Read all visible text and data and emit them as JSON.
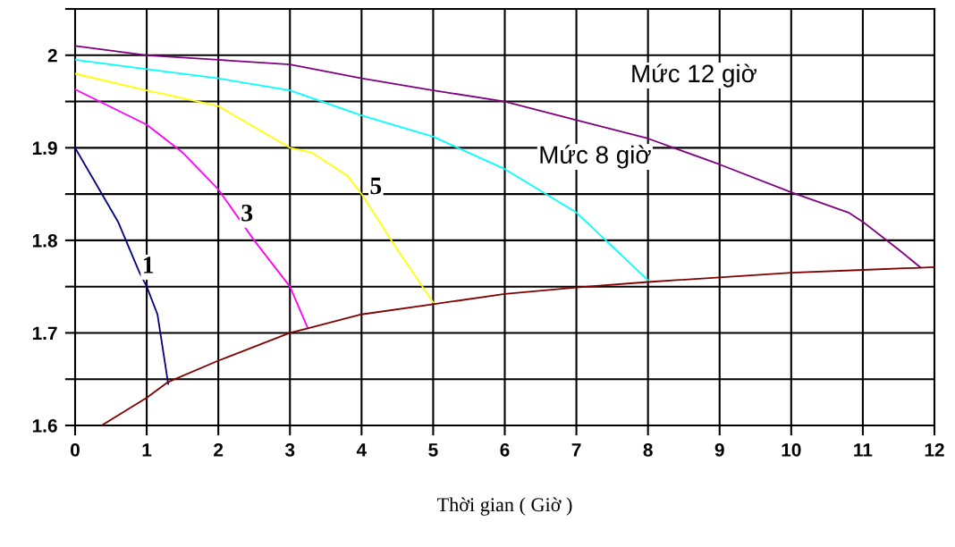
{
  "chart_data": {
    "type": "line",
    "xlabel": "Thời gian ( Giờ )",
    "xlim": [
      0,
      12
    ],
    "xticks": [
      0,
      1,
      2,
      3,
      4,
      5,
      6,
      7,
      8,
      9,
      10,
      11,
      12
    ],
    "ylim": [
      1.6,
      2.05
    ],
    "yticks": [
      1.6,
      {
        "value": 1.65,
        "label": null
      },
      1.7,
      {
        "value": 1.75,
        "label": null
      },
      1.8,
      {
        "value": 1.85,
        "label": null
      },
      1.9,
      {
        "value": 1.95,
        "label": null
      },
      2,
      {
        "value": 2.05,
        "label": null
      }
    ],
    "grid": true,
    "marker": "none",
    "line_style": "solid",
    "legend": false,
    "series": [
      {
        "color": "#800080",
        "x": [
          0,
          1,
          2,
          3,
          4,
          5,
          6,
          7,
          8,
          9,
          10,
          10.8,
          11,
          11.5,
          11.8
        ],
        "values": [
          2.01,
          2.0,
          1.995,
          1.99,
          1.975,
          1.962,
          1.95,
          1.93,
          1.91,
          1.882,
          1.852,
          1.83,
          1.82,
          1.79,
          1.771
        ]
      },
      {
        "color": "#00ffff",
        "x": [
          0,
          1,
          2,
          3,
          4,
          5,
          6,
          7,
          8
        ],
        "values": [
          1.995,
          1.985,
          1.975,
          1.962,
          1.935,
          1.912,
          1.877,
          1.83,
          1.757
        ]
      },
      {
        "color": "#ffff00",
        "x": [
          0,
          1,
          2,
          3,
          3.3,
          3.8,
          4,
          4.5,
          5
        ],
        "values": [
          1.98,
          1.962,
          1.945,
          1.9,
          1.895,
          1.87,
          1.85,
          1.79,
          1.733
        ]
      },
      {
        "color": "#ff00ff",
        "x": [
          0,
          1,
          1.5,
          2,
          2.5,
          3,
          3.25
        ],
        "values": [
          1.963,
          1.925,
          1.895,
          1.855,
          1.8,
          1.75,
          1.705
        ]
      },
      {
        "color": "#000080",
        "x": [
          0,
          0.3,
          0.6,
          0.9,
          1,
          1.15,
          1.3
        ],
        "values": [
          1.9,
          1.86,
          1.82,
          1.765,
          1.75,
          1.72,
          1.645
        ]
      },
      {
        "color": "#800000",
        "x": [
          0.37,
          1,
          1.3,
          2,
          3,
          3.25,
          4,
          5,
          6,
          7,
          8,
          9,
          10,
          11,
          12
        ],
        "values": [
          1.6,
          1.63,
          1.647,
          1.67,
          1.7,
          1.705,
          1.72,
          1.731,
          1.742,
          1.749,
          1.755,
          1.76,
          1.765,
          1.768,
          1.771
        ]
      }
    ],
    "annotations": [
      "1",
      "3",
      "5",
      "Mức 12 giờ",
      "Mức 8 giờ"
    ]
  }
}
